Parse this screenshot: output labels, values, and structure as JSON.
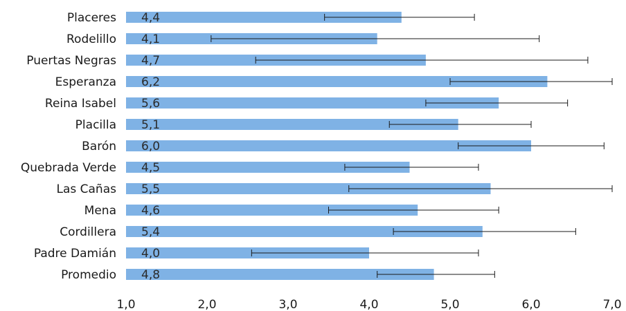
{
  "chart_data": {
    "type": "bar",
    "orientation": "horizontal",
    "categories": [
      "Placeres",
      "Rodelillo",
      "Puertas Negras",
      "Esperanza",
      "Reina Isabel",
      "Placilla",
      "Barón",
      "Quebrada Verde",
      "Las Cañas",
      "Mena",
      "Cordillera",
      "Padre Damián",
      "Promedio"
    ],
    "values": [
      4.4,
      4.1,
      4.7,
      6.2,
      5.6,
      5.1,
      6.0,
      4.5,
      5.5,
      4.6,
      5.4,
      4.0,
      4.8
    ],
    "value_labels": [
      "4,4",
      "4,1",
      "4,7",
      "6,2",
      "5,6",
      "5,1",
      "6,0",
      "4,5",
      "5,5",
      "4,6",
      "5,4",
      "4,0",
      "4,8"
    ],
    "error_low": [
      3.45,
      2.05,
      2.6,
      5.0,
      4.7,
      4.25,
      5.1,
      3.7,
      3.75,
      3.5,
      4.3,
      2.55,
      4.1
    ],
    "error_high": [
      5.3,
      6.1,
      6.7,
      7.0,
      6.45,
      6.0,
      6.9,
      5.35,
      7.0,
      5.6,
      6.55,
      5.35,
      5.55
    ],
    "xlim": [
      1.0,
      7.0
    ],
    "xticks": [
      1.0,
      2.0,
      3.0,
      4.0,
      5.0,
      6.0,
      7.0
    ],
    "xtick_labels": [
      "1,0",
      "2,0",
      "3,0",
      "4,0",
      "5,0",
      "6,0",
      "7,0"
    ],
    "bar_color": "#7fb2e5",
    "errorbar_color": "#1a1a1a",
    "grid": false,
    "title": "",
    "xlabel": "",
    "ylabel": ""
  }
}
